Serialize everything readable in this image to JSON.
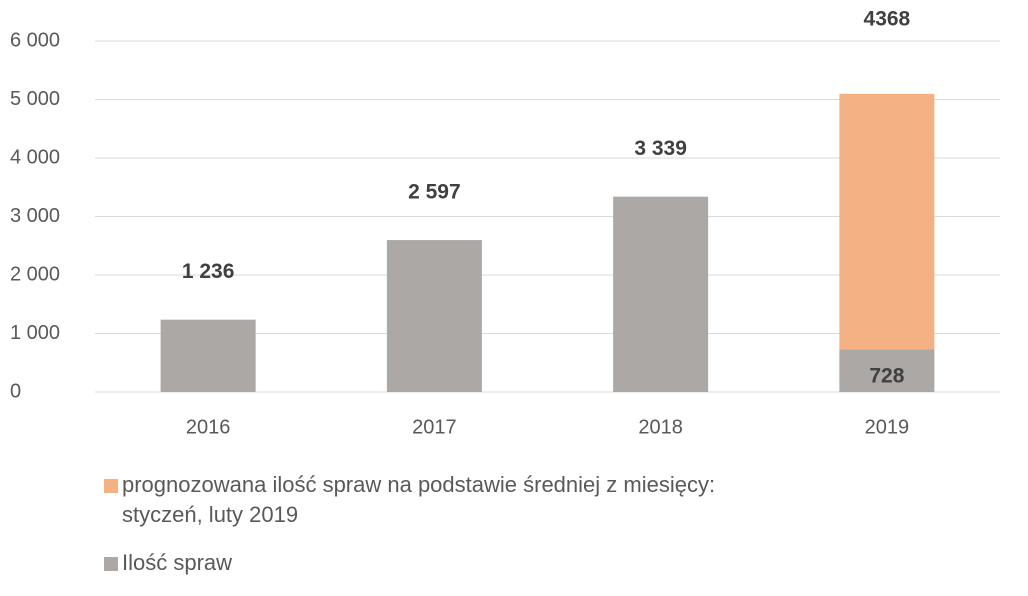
{
  "chart_data": {
    "type": "stacked_bar",
    "categories": [
      "2016",
      "2017",
      "2018",
      "2019"
    ],
    "series": [
      {
        "name": "Ilość spraw",
        "color": "#aba8a6",
        "values": [
          1236,
          2597,
          3339,
          728
        ],
        "value_labels": [
          "1 236",
          "2 597",
          "3 339",
          "728"
        ]
      },
      {
        "name": "prognozowana ilość spraw na podstawie średniej z miesięcy: styczeń, luty 2019",
        "color": "#f4b183",
        "values": [
          null,
          null,
          null,
          4368
        ]
      }
    ],
    "ylim": [
      0,
      6000
    ],
    "yticks": [
      0,
      {
        "value": 1000,
        "label": "1 000"
      },
      {
        "value": 2000,
        "label": "2 000"
      },
      {
        "value": 3000,
        "label": "3 000"
      },
      {
        "value": 4000,
        "label": "4 000"
      },
      {
        "value": 5000,
        "label": "5 000"
      },
      {
        "value": 6000,
        "label": "6 000"
      }
    ],
    "grid": true
  }
}
